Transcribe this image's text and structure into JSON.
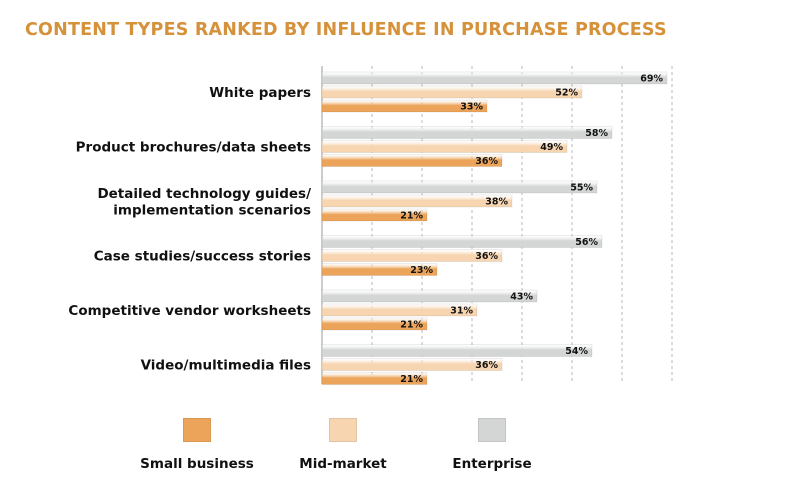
{
  "title": "CONTENT TYPES RANKED BY INFLUENCE IN PURCHASE PROCESS",
  "chart_data": {
    "type": "bar",
    "orientation": "horizontal",
    "title": "CONTENT TYPES RANKED BY INFLUENCE IN PURCHASE PROCESS",
    "categories": [
      [
        "White papers"
      ],
      [
        "Product brochures/data sheets"
      ],
      [
        "Detailed technology guides/",
        "implementation scenarios"
      ],
      [
        "Case studies/success stories"
      ],
      [
        "Competitive vendor worksheets"
      ],
      [
        "Video/multimedia files"
      ]
    ],
    "series": [
      {
        "name": "Enterprise",
        "values": [
          69,
          58,
          55,
          56,
          43,
          54
        ],
        "labels": [
          "69%",
          "58%",
          "55%",
          "56%",
          "43%",
          "54%"
        ]
      },
      {
        "name": "Mid-market",
        "values": [
          52,
          49,
          38,
          36,
          31,
          36
        ],
        "labels": [
          "52%",
          "49%",
          "38%",
          "36%",
          "31%",
          "36%"
        ]
      },
      {
        "name": "Small business",
        "values": [
          33,
          36,
          21,
          23,
          21,
          21
        ],
        "labels": [
          "33%",
          "36%",
          "21%",
          "23%",
          "21%",
          "21%"
        ]
      }
    ],
    "xlim": [
      0,
      70
    ],
    "grid": true,
    "legend": "bottom",
    "colors": {
      "Enterprise": "#d3d6d5",
      "Mid-market": "#f6d5b0",
      "Small business": "#eba45a"
    }
  },
  "legend": {
    "items": [
      {
        "label": "Small business",
        "color": "#eba45a"
      },
      {
        "label": "Mid-market",
        "color": "#f6d5b0"
      },
      {
        "label": "Enterprise",
        "color": "#d3d6d5"
      }
    ]
  }
}
